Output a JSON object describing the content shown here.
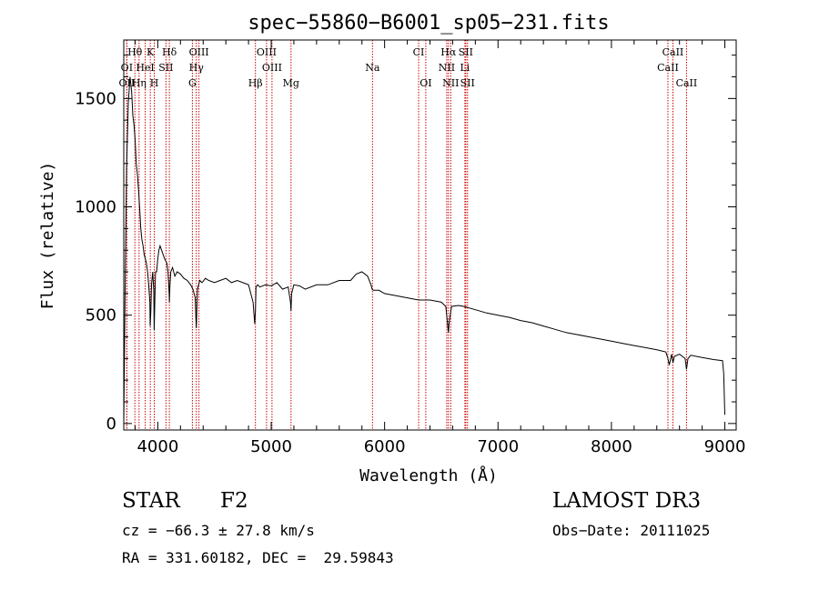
{
  "chart_data": {
    "type": "line",
    "title": "spec−55860−B6001_sp05−231.fits",
    "xlabel": "Wavelength (Å)",
    "ylabel": "Flux (relative)",
    "xlim": [
      3700,
      9100
    ],
    "ylim": [
      -30,
      1770
    ],
    "x_ticks": [
      4000,
      5000,
      6000,
      7000,
      8000,
      9000
    ],
    "y_ticks": [
      0,
      500,
      1000,
      1500
    ],
    "grid": false,
    "series": [
      {
        "name": "flux",
        "x": [
          3700,
          3712,
          3725,
          3740,
          3755,
          3770,
          3780,
          3790,
          3800,
          3810,
          3820,
          3830,
          3840,
          3850,
          3860,
          3870,
          3880,
          3890,
          3900,
          3910,
          3920,
          3930,
          3933,
          3938,
          3945,
          3955,
          3965,
          3968,
          3972,
          3980,
          3990,
          4000,
          4010,
          4020,
          4040,
          4060,
          4080,
          4090,
          4100,
          4102,
          4108,
          4115,
          4130,
          4150,
          4170,
          4200,
          4230,
          4260,
          4290,
          4310,
          4330,
          4336,
          4340,
          4345,
          4350,
          4370,
          4390,
          4420,
          4450,
          4500,
          4550,
          4600,
          4650,
          4700,
          4750,
          4800,
          4840,
          4855,
          4861,
          4866,
          4880,
          4900,
          4950,
          5000,
          5050,
          5100,
          5150,
          5170,
          5175,
          5180,
          5200,
          5250,
          5300,
          5400,
          5500,
          5600,
          5700,
          5750,
          5800,
          5850,
          5880,
          5890,
          5900,
          5950,
          6000,
          6100,
          6200,
          6300,
          6400,
          6500,
          6540,
          6555,
          6563,
          6570,
          6590,
          6650,
          6700,
          6800,
          6900,
          7000,
          7100,
          7200,
          7300,
          7400,
          7500,
          7600,
          7700,
          7800,
          7900,
          8000,
          8100,
          8200,
          8300,
          8400,
          8480,
          8498,
          8510,
          8530,
          8542,
          8555,
          8600,
          8650,
          8662,
          8675,
          8700,
          8800,
          8900,
          8980,
          8990,
          9000
        ],
        "y": [
          0,
          620,
          1180,
          1480,
          1600,
          1530,
          1420,
          1380,
          1310,
          1200,
          1150,
          1080,
          1000,
          900,
          850,
          820,
          780,
          760,
          740,
          700,
          640,
          560,
          450,
          510,
          640,
          700,
          610,
          430,
          520,
          700,
          700,
          760,
          800,
          820,
          790,
          760,
          740,
          700,
          600,
          560,
          640,
          700,
          720,
          680,
          700,
          690,
          670,
          660,
          640,
          620,
          580,
          480,
          440,
          540,
          620,
          660,
          650,
          670,
          660,
          650,
          660,
          670,
          650,
          660,
          650,
          640,
          560,
          460,
          520,
          630,
          640,
          630,
          640,
          635,
          650,
          620,
          630,
          560,
          520,
          600,
          640,
          635,
          620,
          640,
          640,
          660,
          660,
          690,
          700,
          680,
          640,
          620,
          615,
          615,
          600,
          590,
          580,
          570,
          570,
          560,
          540,
          460,
          420,
          470,
          540,
          545,
          540,
          525,
          510,
          500,
          490,
          475,
          465,
          450,
          435,
          420,
          410,
          400,
          390,
          380,
          370,
          360,
          350,
          340,
          330,
          300,
          270,
          320,
          280,
          310,
          320,
          300,
          250,
          300,
          315,
          305,
          295,
          290,
          230,
          40
        ]
      }
    ],
    "line_markers": [
      {
        "label": "Hθ",
        "x": 3798,
        "row": 1
      },
      {
        "label": "K",
        "x": 3934,
        "row": 1
      },
      {
        "label": "Hδ",
        "x": 4102,
        "row": 1
      },
      {
        "label": "OIII",
        "x": 4363,
        "row": 1
      },
      {
        "label": "OIII",
        "x": 4959,
        "row": 1
      },
      {
        "label": "CI",
        "x": 6300,
        "row": 1
      },
      {
        "label": "Hα",
        "x": 6563,
        "row": 1
      },
      {
        "label": "SII",
        "x": 6716,
        "row": 1
      },
      {
        "label": "CaII",
        "x": 8542,
        "row": 1
      },
      {
        "label": "OI",
        "x": 3727,
        "row": 2
      },
      {
        "label": "HeI",
        "x": 3889,
        "row": 2
      },
      {
        "label": "SII",
        "x": 4072,
        "row": 2
      },
      {
        "label": "Hγ",
        "x": 4340,
        "row": 2
      },
      {
        "label": "OIII",
        "x": 5007,
        "row": 2
      },
      {
        "label": "Na",
        "x": 5893,
        "row": 2
      },
      {
        "label": "NII",
        "x": 6548,
        "row": 2
      },
      {
        "label": "Li",
        "x": 6708,
        "row": 2
      },
      {
        "label": "CaII",
        "x": 8498,
        "row": 2
      },
      {
        "label": "OII",
        "x": 3727,
        "row": 3
      },
      {
        "label": "Hη",
        "x": 3835,
        "row": 3
      },
      {
        "label": "H",
        "x": 3969,
        "row": 3
      },
      {
        "label": "G",
        "x": 4305,
        "row": 3
      },
      {
        "label": "Hβ",
        "x": 4861,
        "row": 3
      },
      {
        "label": "Mg",
        "x": 5175,
        "row": 3
      },
      {
        "label": "OI",
        "x": 6363,
        "row": 3
      },
      {
        "label": "NII",
        "x": 6583,
        "row": 3
      },
      {
        "label": "SII",
        "x": 6731,
        "row": 3
      },
      {
        "label": "CaII",
        "x": 8662,
        "row": 3
      }
    ],
    "marker_color": "#cc0000",
    "line_color": "#000000"
  },
  "info": {
    "object_class": "STAR",
    "subclass": "F2",
    "survey": "LAMOST DR3",
    "cz": "cz = −66.3 ± 27.8 km/s",
    "obs_date": "Obs−Date: 20111025",
    "coords": "RA = 331.60182, DEC =  29.59843"
  }
}
